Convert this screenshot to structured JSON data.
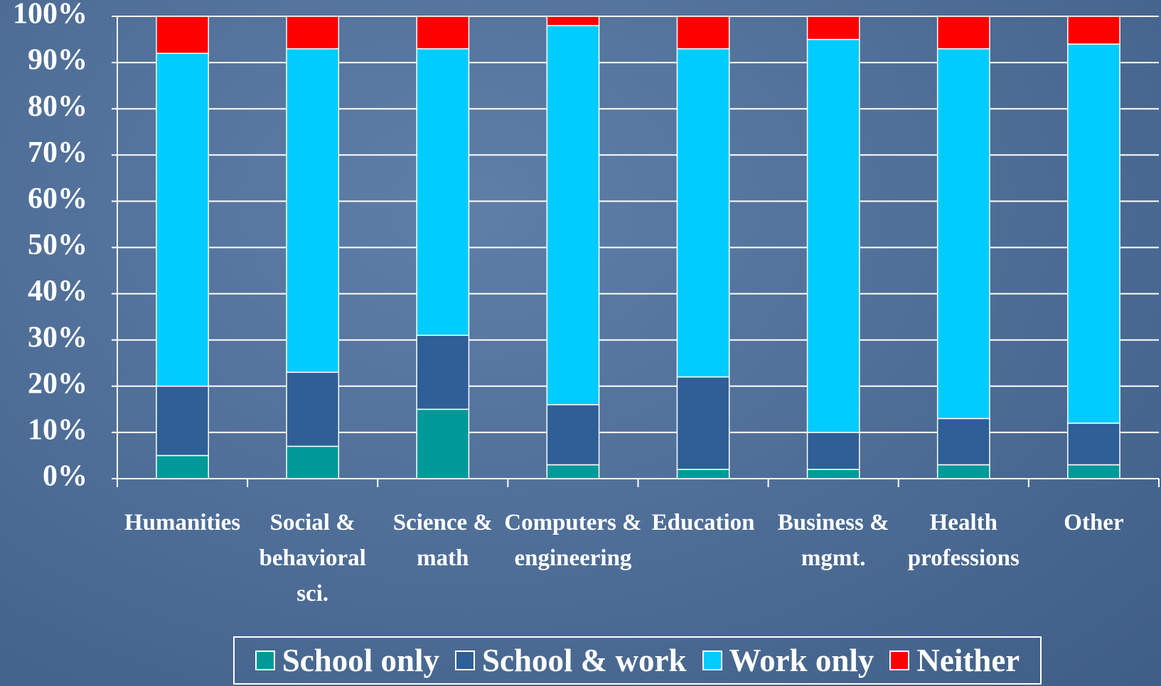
{
  "chart_data": {
    "type": "stacked_bar",
    "categories": [
      "Humanities",
      "Social & behavioral sci.",
      "Science & math",
      "Computers & engineering",
      "Education",
      "Business & mgmt.",
      "Health professions",
      "Other"
    ],
    "series": [
      {
        "name": "School only",
        "color": "#009999",
        "values": [
          5,
          7,
          15,
          3,
          2,
          2,
          3,
          3
        ]
      },
      {
        "name": "School & work",
        "color": "#2e5f96",
        "values": [
          15,
          16,
          16,
          13,
          20,
          8,
          10,
          9
        ]
      },
      {
        "name": "Work only",
        "color": "#00ccff",
        "values": [
          72,
          70,
          62,
          82,
          71,
          85,
          80,
          82
        ]
      },
      {
        "name": "Neither",
        "color": "#ff0000",
        "values": [
          8,
          7,
          7,
          2,
          7,
          5,
          7,
          6
        ]
      }
    ],
    "ylim": [
      0,
      100
    ],
    "yticks": [
      {
        "value": 0,
        "label": "0%"
      },
      {
        "value": 10,
        "label": "10%"
      },
      {
        "value": 20,
        "label": "20%"
      },
      {
        "value": 30,
        "label": "30%"
      },
      {
        "value": 40,
        "label": "40%"
      },
      {
        "value": 50,
        "label": "50%"
      },
      {
        "value": 60,
        "label": "60%"
      },
      {
        "value": 70,
        "label": "70%"
      },
      {
        "value": 80,
        "label": "80%"
      },
      {
        "value": 90,
        "label": "90%"
      },
      {
        "value": 100,
        "label": "100%"
      }
    ],
    "grid": true,
    "legend": "bottom"
  }
}
